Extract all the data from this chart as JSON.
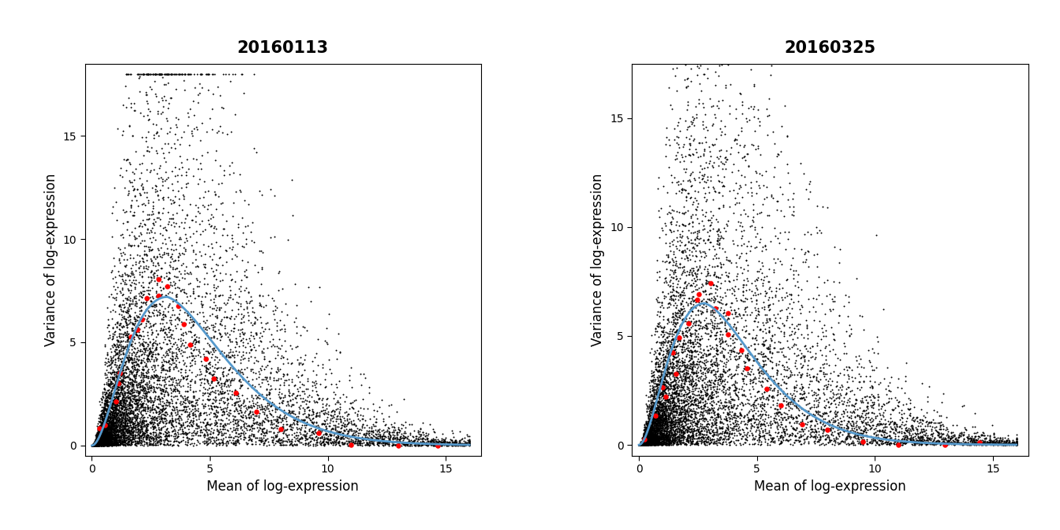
{
  "panels": [
    {
      "title": "20160113",
      "xlim": [
        -0.3,
        16.5
      ],
      "ylim": [
        -0.5,
        18.5
      ],
      "xticks": [
        0,
        5,
        10,
        15
      ],
      "yticks": [
        0,
        5,
        10,
        15
      ],
      "xlabel": "Mean of log-expression",
      "ylabel": "Variance of log-expression",
      "seed_black": 42,
      "n_black": 10000,
      "curve_peak_x": 3.2,
      "curve_peak_y": 7.2,
      "curve_decay": 0.55,
      "red_means": [
        0.3,
        0.6,
        0.9,
        1.1,
        1.3,
        1.6,
        1.9,
        2.1,
        2.4,
        2.7,
        3.0,
        3.3,
        3.6,
        3.9,
        4.3,
        4.8,
        5.3,
        6.0,
        7.0,
        8.0,
        9.5,
        11.0,
        13.0,
        14.5
      ],
      "red_vars": [
        0.5,
        1.2,
        2.1,
        2.8,
        3.6,
        4.5,
        5.5,
        6.2,
        7.1,
        7.5,
        7.8,
        7.3,
        6.6,
        5.8,
        5.0,
        4.2,
        3.4,
        2.3,
        1.5,
        0.9,
        0.4,
        0.2,
        0.1,
        0.05
      ]
    },
    {
      "title": "20160325",
      "xlim": [
        -0.3,
        16.5
      ],
      "ylim": [
        -0.5,
        17.5
      ],
      "xticks": [
        0,
        5,
        10,
        15
      ],
      "yticks": [
        0,
        5,
        10,
        15
      ],
      "xlabel": "Mean of log-expression",
      "ylabel": "Variance of log-expression",
      "seed_black": 99,
      "n_black": 10000,
      "curve_peak_x": 2.8,
      "curve_peak_y": 6.5,
      "curve_decay": 0.55,
      "red_means": [
        0.3,
        0.6,
        0.9,
        1.1,
        1.3,
        1.6,
        1.9,
        2.1,
        2.4,
        2.7,
        3.0,
        3.3,
        3.6,
        3.9,
        4.3,
        4.8,
        5.3,
        6.0,
        7.0,
        8.0,
        9.5,
        11.0,
        13.0,
        14.5
      ],
      "red_vars": [
        0.4,
        1.0,
        1.8,
        2.5,
        3.2,
        4.1,
        5.0,
        5.7,
        6.4,
        6.8,
        7.0,
        6.5,
        5.8,
        5.0,
        4.3,
        3.5,
        2.8,
        2.0,
        1.2,
        0.7,
        0.3,
        0.15,
        0.08,
        0.04
      ]
    }
  ],
  "bg_color": "#ffffff",
  "black_dot_color": "#000000",
  "red_dot_color": "#ff0000",
  "blue_line_color": "#5599cc",
  "title_fontsize": 15,
  "label_fontsize": 12,
  "tick_fontsize": 10
}
